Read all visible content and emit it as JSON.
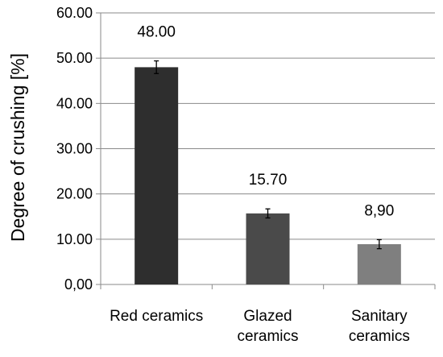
{
  "chart_data": {
    "type": "bar",
    "ylabel": "Degree of crushing [%]",
    "xlabel": "",
    "ylim": [
      0,
      60
    ],
    "yticks": [
      0,
      10,
      20,
      30,
      40,
      50,
      60
    ],
    "ytick_labels": [
      "0,00",
      "10.00",
      "20.00",
      "30.00",
      "40.00",
      "50.00",
      "60.00"
    ],
    "grid": true,
    "categories": [
      [
        "Red ceramics"
      ],
      [
        "Glazed",
        "ceramics"
      ],
      [
        "Sanitary",
        "ceramics"
      ]
    ],
    "values": [
      48.0,
      15.7,
      8.9
    ],
    "data_labels": [
      "48.00",
      "15.70",
      "8,90"
    ],
    "error": [
      1.4,
      1.0,
      1.0
    ],
    "colors": [
      "#2e2e2e",
      "#4a4a4a",
      "#7f7f7f"
    ]
  }
}
